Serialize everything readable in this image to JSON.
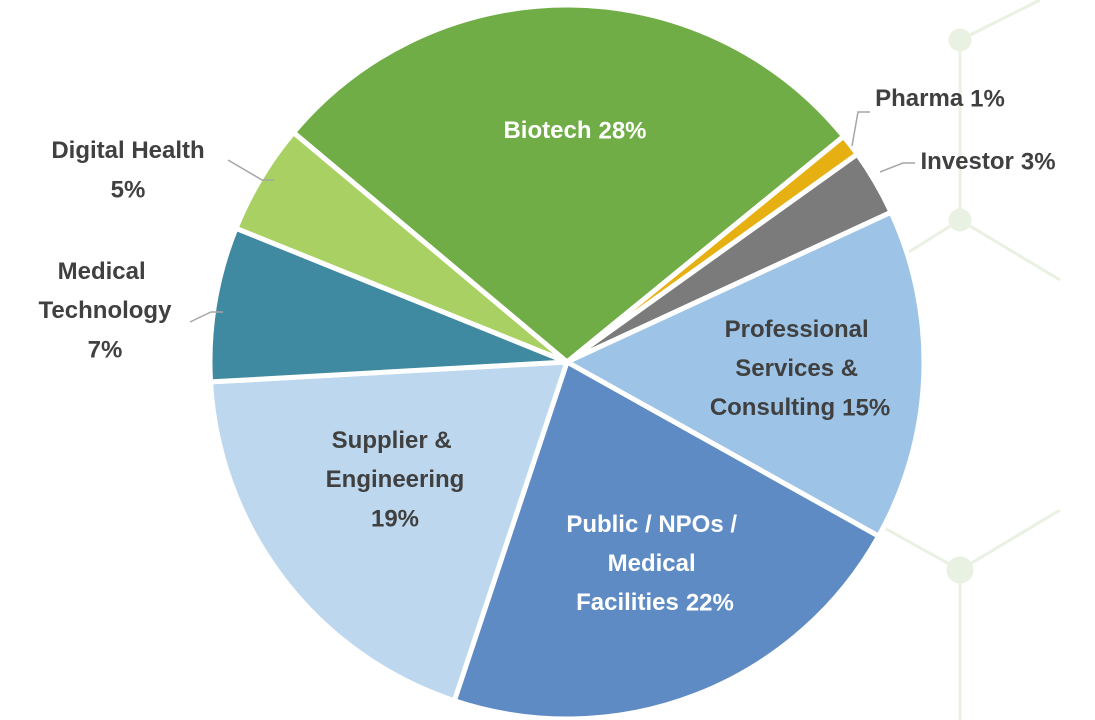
{
  "chart_data": {
    "type": "pie",
    "categories": [
      "Biotech",
      "Pharma",
      "Investor",
      "Professional Services & Consulting",
      "Public / NPOs / Medical Facilities",
      "Supplier & Engineering",
      "Medical Technology",
      "Digital Health"
    ],
    "values": [
      28,
      1,
      3,
      15,
      22,
      19,
      7,
      5
    ],
    "value_labels": [
      "28%",
      "1%",
      "3%",
      "15%",
      "22%",
      "19%",
      "7%",
      "5%"
    ],
    "colors": [
      "#70ad47",
      "#e6b012",
      "#7b7b7b",
      "#9dc3e6",
      "#5f8bc4",
      "#bdd7ee",
      "#3f8aa0",
      "#a9d062"
    ]
  }
}
